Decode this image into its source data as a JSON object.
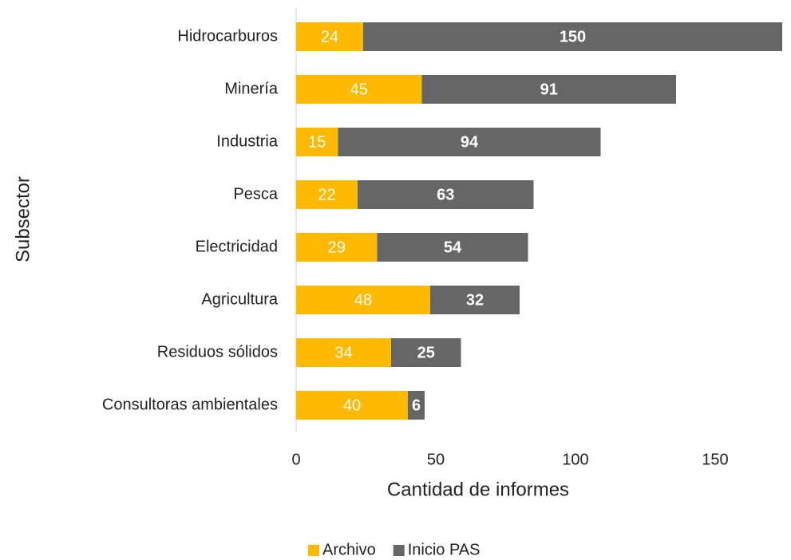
{
  "chart_data": {
    "type": "stacked_bar_horizontal",
    "categories": [
      "Hidrocarburos",
      "Minería",
      "Industria",
      "Pesca",
      "Electricidad",
      "Agricultura",
      "Residuos sólidos",
      "Consultoras ambientales"
    ],
    "series": [
      {
        "name": "Archivo",
        "color": "#FFB900",
        "values": [
          24,
          45,
          15,
          22,
          29,
          48,
          34,
          40
        ]
      },
      {
        "name": "Inicio PAS",
        "color": "#666666",
        "values": [
          150,
          91,
          94,
          63,
          54,
          32,
          25,
          6
        ]
      }
    ],
    "x_label": "Cantidad de informes",
    "y_label": "Subsector",
    "xlim": [
      0,
      176
    ],
    "xticks": [
      0,
      50,
      100,
      150
    ],
    "legend": "bottom"
  }
}
